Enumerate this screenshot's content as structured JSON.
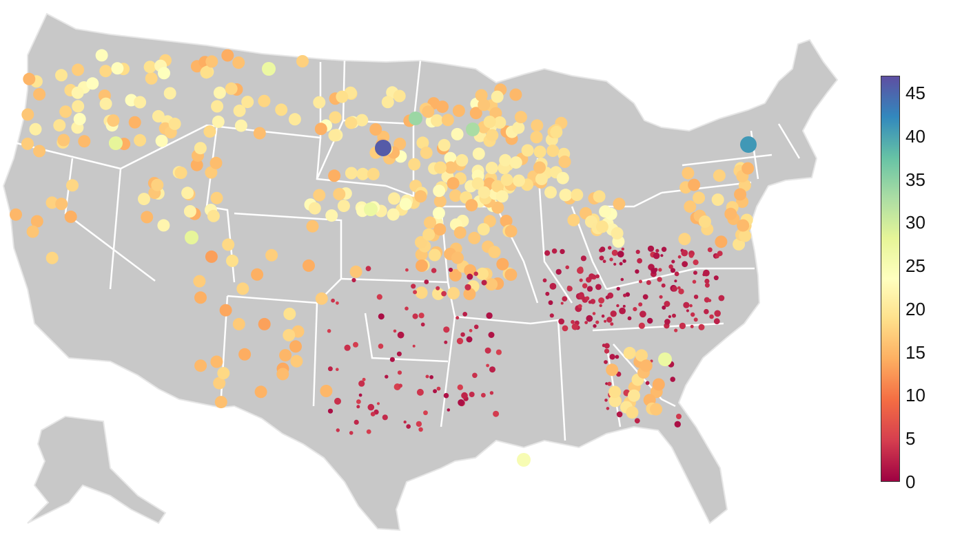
{
  "map": {
    "land_color": "#c8c8c8",
    "border_color": "#ffffff"
  },
  "colorbar": {
    "colors": [
      "#9e0142",
      "#d53e4f",
      "#f46d43",
      "#fdae61",
      "#fee08b",
      "#ffffbf",
      "#e6f598",
      "#abdda4",
      "#66c2a5",
      "#3288bd",
      "#5e4fa2"
    ],
    "min": 0,
    "max": 47,
    "ticks": [
      {
        "value": 0,
        "label": "0"
      },
      {
        "value": 5,
        "label": "5"
      },
      {
        "value": 10,
        "label": "10"
      },
      {
        "value": 15,
        "label": "15"
      },
      {
        "value": 20,
        "label": "20"
      },
      {
        "value": 25,
        "label": "25"
      },
      {
        "value": 30,
        "label": "30"
      },
      {
        "value": 35,
        "label": "35"
      },
      {
        "value": 40,
        "label": "40"
      },
      {
        "value": 45,
        "label": "45"
      }
    ]
  }
}
